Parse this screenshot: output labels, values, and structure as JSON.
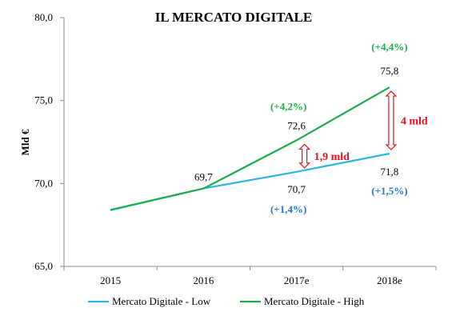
{
  "chart_data": {
    "type": "line",
    "title": "IL MERCATO DIGITALE",
    "ylabel": "Mld €",
    "xlabel": "",
    "categories": [
      "2015",
      "2016",
      "2017e",
      "2018e"
    ],
    "ylim": [
      65.0,
      80.0
    ],
    "yticks": [
      "65,0",
      "70,0",
      "75,0",
      "80,0"
    ],
    "series": [
      {
        "name": "Mercato Digitale - Low",
        "color": "#2bb3e8",
        "values": [
          68.4,
          69.7,
          70.7,
          71.8
        ]
      },
      {
        "name": "Mercato Digitale - High",
        "color": "#1faa4b",
        "values": [
          68.4,
          69.7,
          72.6,
          75.8
        ]
      }
    ],
    "data_labels": [
      {
        "text": "69,7",
        "series": 1,
        "index": 1
      },
      {
        "text": "72,6",
        "series": 1,
        "index": 2
      },
      {
        "text": "75,8",
        "series": 1,
        "index": 3
      },
      {
        "text": "70,7",
        "series": 0,
        "index": 2
      },
      {
        "text": "71,8",
        "series": 0,
        "index": 3
      }
    ],
    "growth_labels": [
      {
        "text": "(+4,2%)",
        "series": 1,
        "index": 2,
        "color": "#1faa4b"
      },
      {
        "text": "(+4,4%)",
        "series": 1,
        "index": 3,
        "color": "#1faa4b"
      },
      {
        "text": "(+1,4%)",
        "series": 0,
        "index": 2,
        "color": "#2278c8"
      },
      {
        "text": "(+1,5%)",
        "series": 0,
        "index": 3,
        "color": "#2278c8"
      }
    ],
    "gap_annotations": [
      {
        "text": "1,9 mld",
        "index": 2,
        "color": "#e8101d"
      },
      {
        "text": "4 mld",
        "index": 3,
        "color": "#e8101d"
      }
    ],
    "grid": false,
    "legend_position": "bottom"
  }
}
